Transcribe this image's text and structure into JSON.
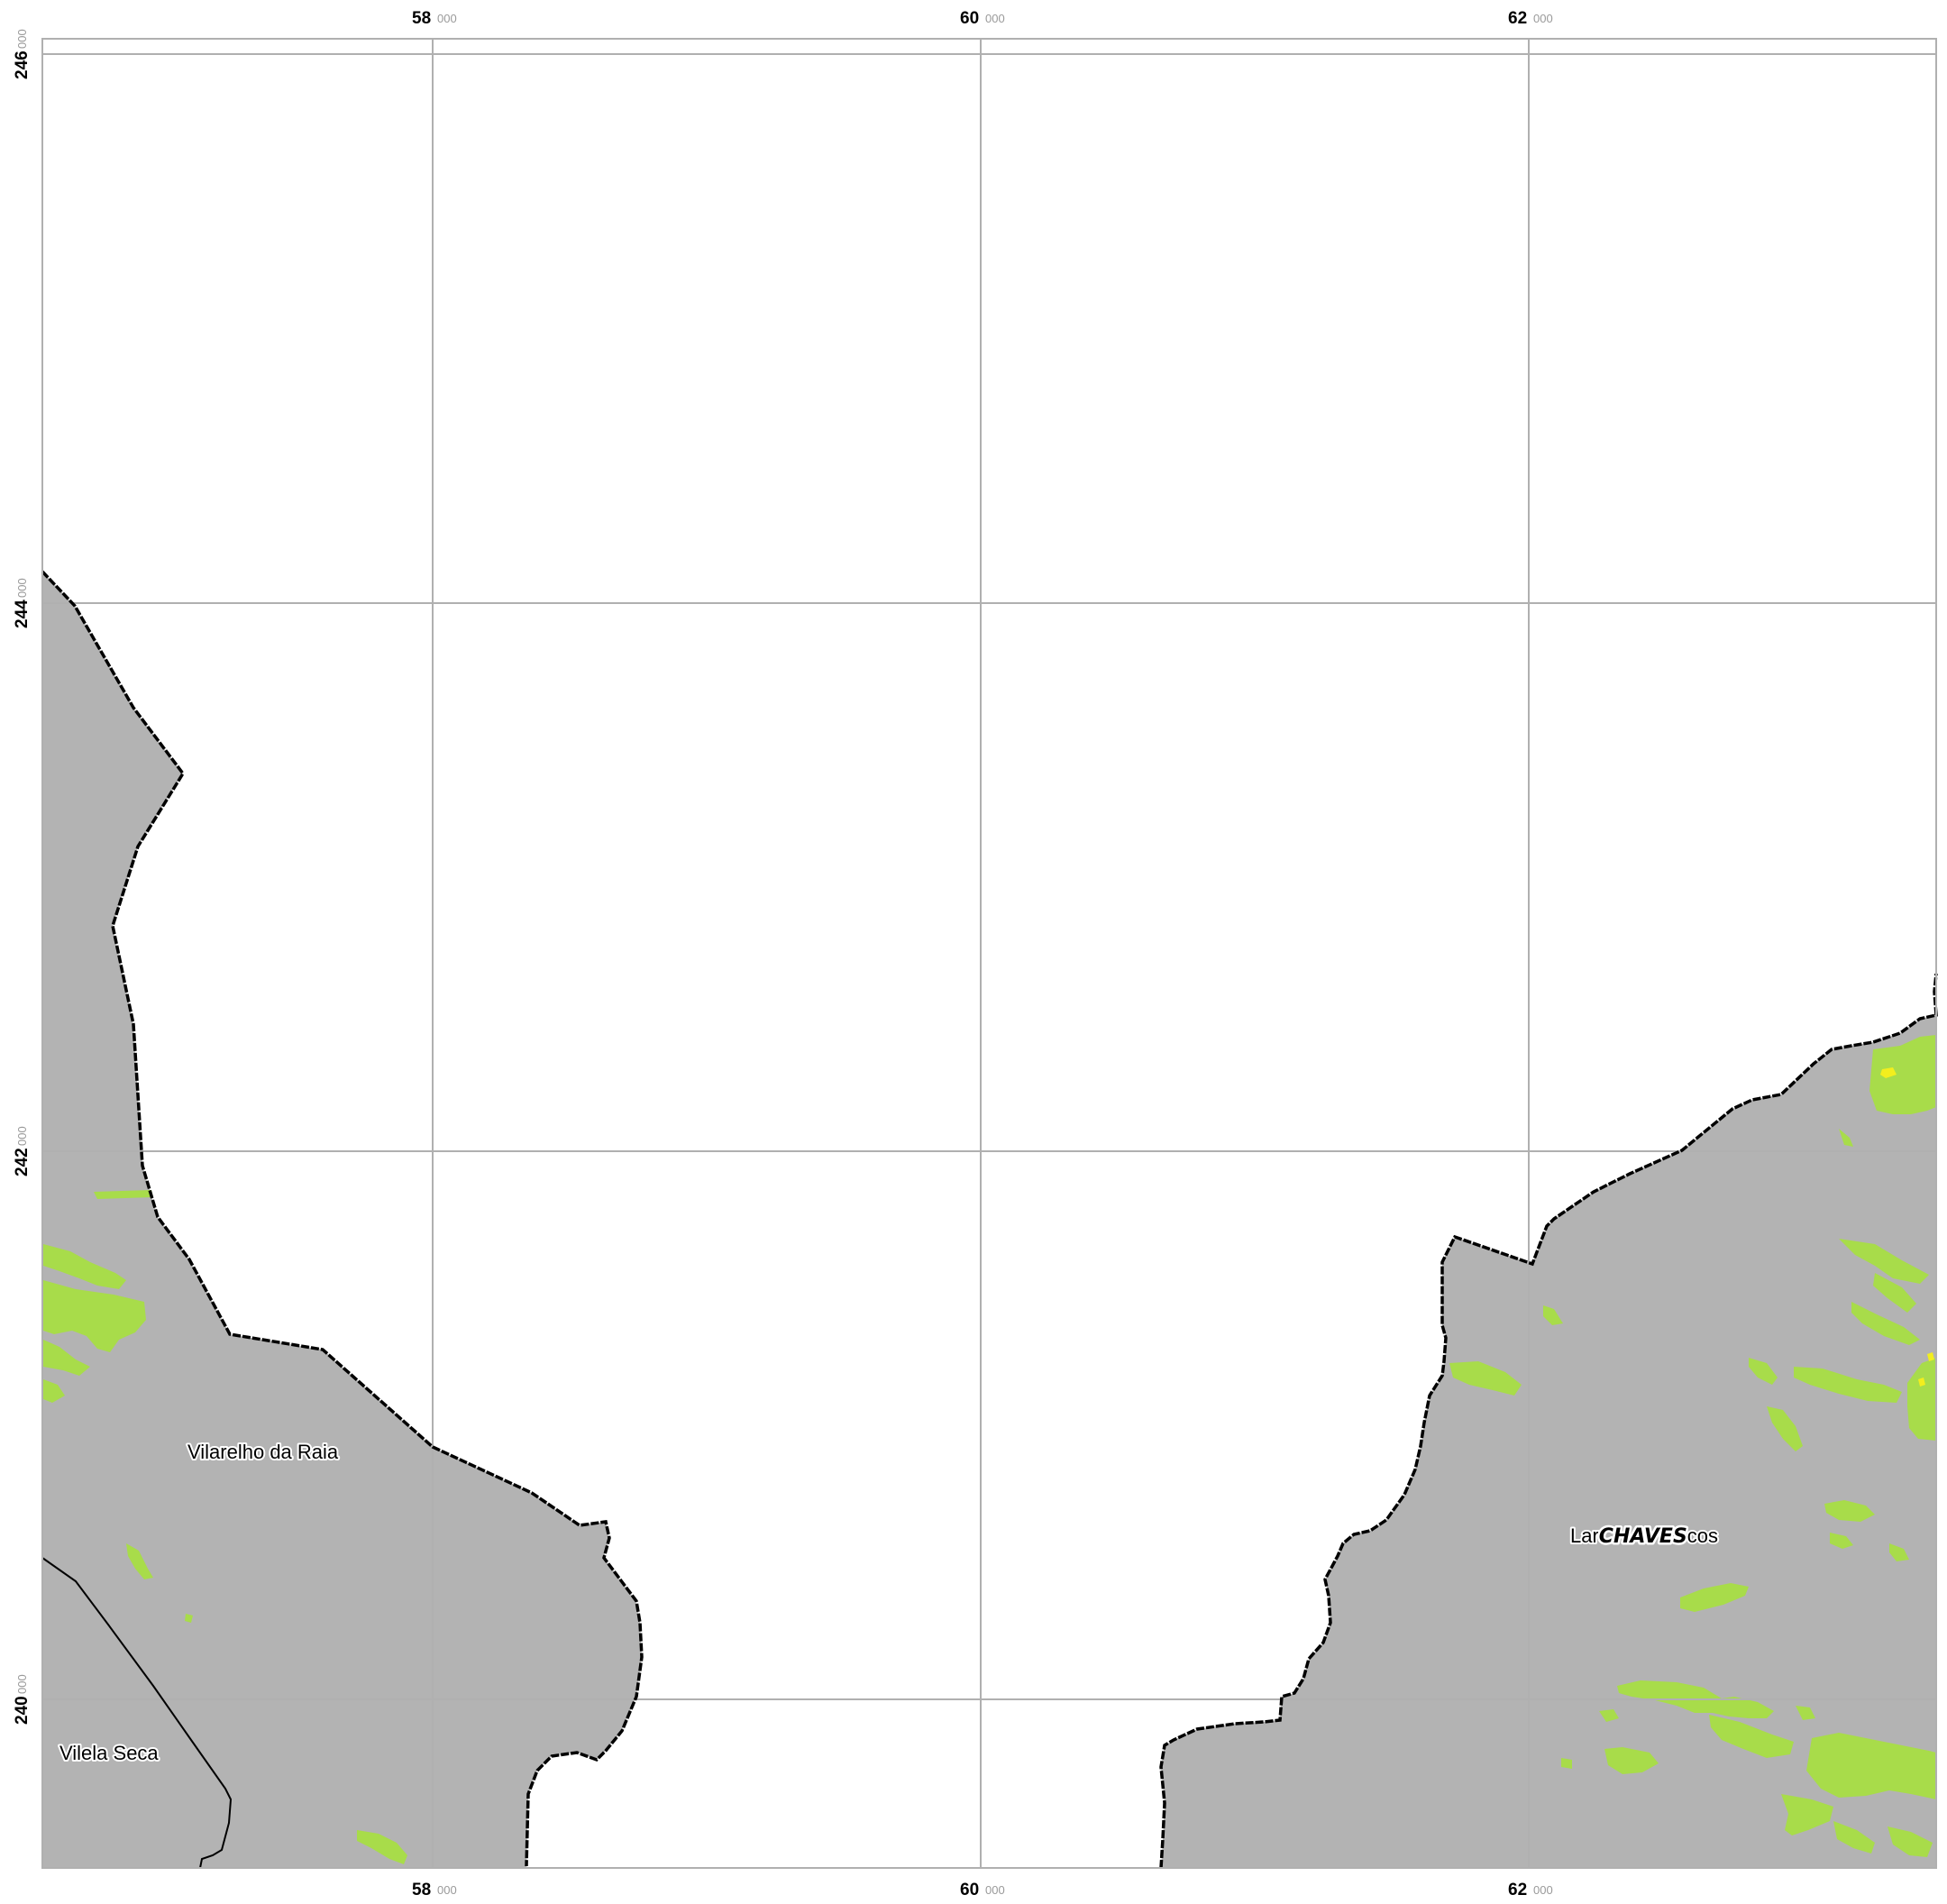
{
  "map": {
    "x_axis": {
      "ticks": [
        {
          "major": "58",
          "minor": "000"
        },
        {
          "major": "60",
          "minor": "000"
        },
        {
          "major": "62",
          "minor": "000"
        }
      ]
    },
    "y_axis": {
      "ticks": [
        {
          "major": "246",
          "minor": "000"
        },
        {
          "major": "244",
          "minor": "000"
        },
        {
          "major": "242",
          "minor": "000"
        },
        {
          "major": "240",
          "minor": "000"
        }
      ]
    },
    "labels": {
      "vilarelho": "Vilarelho da Raia",
      "vilela": "Vilela Seca",
      "lar_prefix": "Lar",
      "municipality": "CHAVES",
      "lar_suffix": "cos"
    },
    "colors": {
      "land": "#b3b3b3",
      "vegetation": "#a8dc4a",
      "highlight": "#f2ee1e",
      "grid": "#b0b0b0",
      "boundary": "#000000"
    }
  }
}
